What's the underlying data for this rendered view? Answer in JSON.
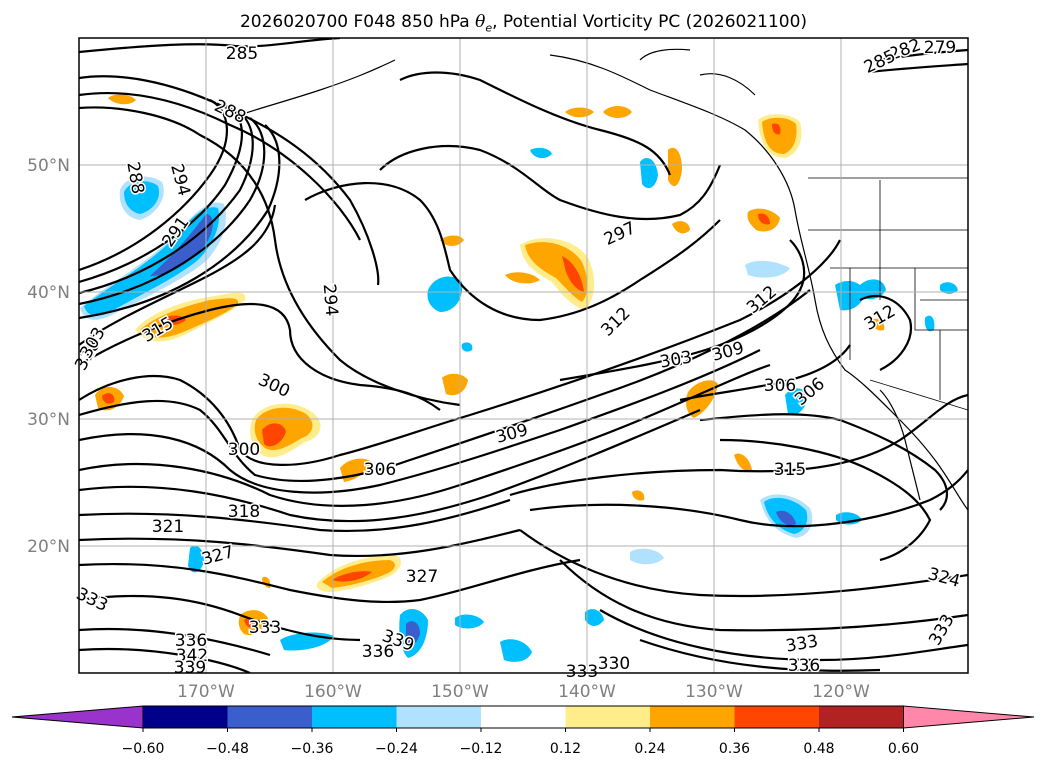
{
  "title": {
    "prefix": "2026020700 F048 850 hPa ",
    "theta": "θ",
    "theta_sub": "e",
    "suffix": ", Potential Vorticity PC (2026021100)"
  },
  "map": {
    "lon_range": [
      -180,
      -110
    ],
    "lat_range": [
      10,
      60
    ],
    "lat_ticks": [
      "50°N",
      "40°N",
      "30°N",
      "20°N"
    ],
    "lon_ticks": [
      "170°W",
      "160°W",
      "150°W",
      "140°W",
      "130°W",
      "120°W"
    ],
    "gridlines": true
  },
  "contour_labels": [
    "285",
    "288",
    "291",
    "282",
    "279",
    "285",
    "288",
    "294",
    "297",
    "294",
    "312",
    "315",
    "318",
    "303",
    "300",
    "300",
    "303",
    "309",
    "312",
    "309",
    "306",
    "306",
    "306",
    "315",
    "318",
    "321",
    "327",
    "333",
    "327",
    "333",
    "336",
    "339",
    "342",
    "339",
    "336",
    "333",
    "330",
    "333",
    "336",
    "324",
    "333",
    "312"
  ],
  "colorbar": {
    "ticks": [
      "−0.60",
      "−0.48",
      "−0.36",
      "−0.24",
      "−0.12",
      "0.12",
      "0.24",
      "0.36",
      "0.48",
      "0.60"
    ],
    "colors": [
      "#9933cc",
      "#00008b",
      "#3a5fcd",
      "#00bfff",
      "#b0e2ff",
      "#ffffff",
      "#ffec8b",
      "#ffa500",
      "#ff4500",
      "#b22222",
      "#ff88aa"
    ]
  }
}
